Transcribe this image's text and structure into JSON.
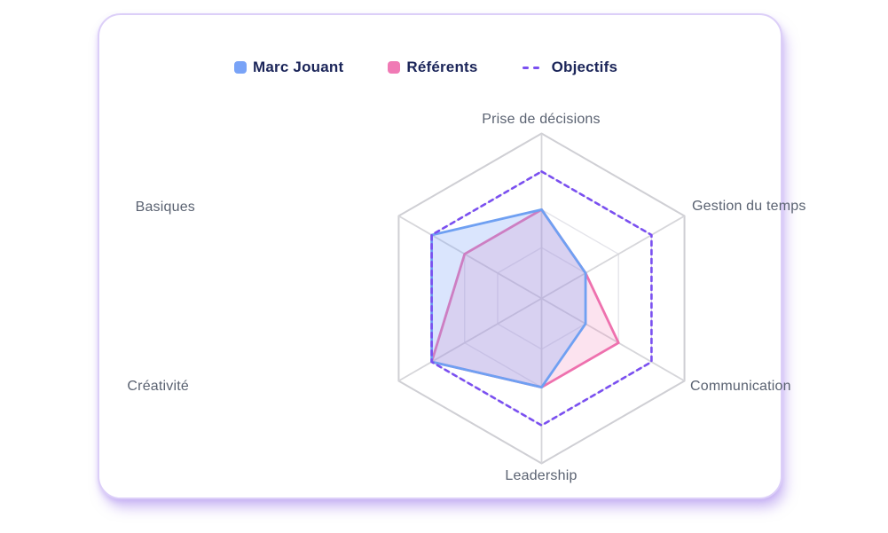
{
  "legend": {
    "items": [
      {
        "label": "Marc Jouant",
        "marker": "square",
        "color": "#79a3f7"
      },
      {
        "label": "Référents",
        "marker": "square",
        "color": "#f07ab5"
      },
      {
        "label": "Objectifs",
        "marker": "dashed-line",
        "color": "#7a4ff0"
      }
    ]
  },
  "chart_data": {
    "type": "radar",
    "categories": [
      "Prise de décisions",
      "Gestion du temps",
      "Communication",
      "Leadership",
      "Créativité",
      "Basiques"
    ],
    "scale": {
      "min": 0,
      "max": 13,
      "grid_rings": [
        4,
        7,
        10,
        13
      ],
      "grid": "on"
    },
    "series": [
      {
        "name": "Marc Jouant",
        "values": [
          7,
          4,
          4,
          7,
          10,
          10
        ],
        "line_color": "#6fa0f2",
        "fill_color": "rgba(121,163,247,0.28)",
        "style": "solid"
      },
      {
        "name": "Référents",
        "values": [
          7,
          4,
          7,
          7,
          10,
          7
        ],
        "line_color": "#ee71ae",
        "fill_color": "rgba(238,113,174,0.20)",
        "style": "solid"
      },
      {
        "name": "Objectifs",
        "values": [
          10,
          10,
          10,
          10,
          10,
          10
        ],
        "line_color": "#7a4ff0",
        "fill_color": "none",
        "style": "dashed"
      }
    ],
    "draw_order": [
      1,
      0,
      2
    ],
    "legend_position": "top-left",
    "grid_colors": {
      "outer": "#cfcfd4",
      "spoke": "#d6d6da",
      "ring": "#e4e4ea"
    }
  }
}
